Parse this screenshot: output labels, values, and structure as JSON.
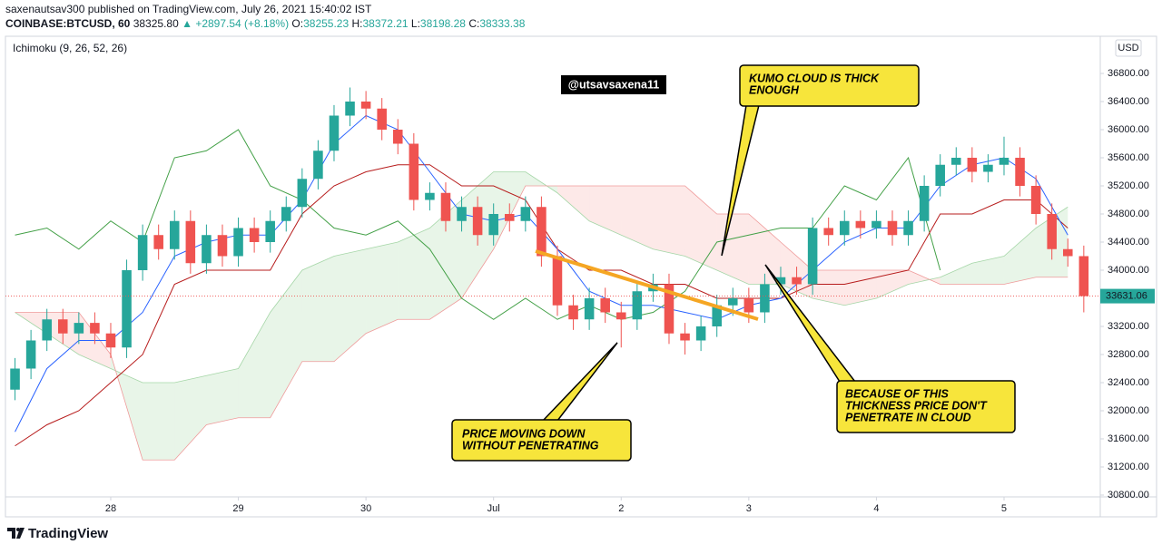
{
  "header": {
    "publisher_line": "saxenautsav300 published on TradingView.com, July 26, 2021 15:40:02 IST",
    "symbol": "COINBASE:BTCUSD, 60",
    "price": "38325.80",
    "change": "▲ +2897.54 (+8.18%)",
    "ohlc": [
      {
        "label": "O:",
        "value": "38255.23"
      },
      {
        "label": "H:",
        "value": "38372.21"
      },
      {
        "label": "L:",
        "value": "38198.28"
      },
      {
        "label": "C:",
        "value": "38333.38"
      }
    ]
  },
  "chart_data": {
    "type": "candlestick",
    "indicator_label": "Ichimoku (9, 26, 52, 26)",
    "currency": "USD",
    "watermark": "@utsavsaxena11",
    "up_color": "#26a69a",
    "down_color": "#ef5350",
    "x": [
      -18,
      -15,
      -12,
      -9,
      -6,
      -3,
      0,
      3,
      6,
      9,
      12,
      15,
      18,
      21,
      24,
      27,
      30,
      33,
      36,
      39,
      42,
      45,
      48,
      51,
      54,
      57,
      60,
      63,
      66,
      69,
      72,
      75,
      78,
      81,
      84,
      87,
      90,
      93,
      96,
      99,
      102,
      105,
      108,
      111,
      114,
      117,
      120,
      123,
      126,
      129,
      132,
      135,
      138,
      141,
      144,
      147,
      150,
      153,
      156,
      159,
      162,
      165,
      168,
      171,
      174,
      177,
      180,
      183
    ],
    "open": [
      32300,
      32600,
      33000,
      33300,
      33100,
      33250,
      33100,
      32900,
      34000,
      34500,
      34300,
      34700,
      34100,
      34500,
      34200,
      34600,
      34400,
      34700,
      34900,
      35300,
      35700,
      36200,
      36400,
      36300,
      36000,
      35800,
      35000,
      35100,
      34700,
      34900,
      34500,
      34800,
      34700,
      34900,
      34200,
      33500,
      33300,
      33600,
      33400,
      33300,
      33700,
      33800,
      33100,
      33000,
      33200,
      33500,
      33600,
      33400,
      33800,
      33900,
      33800,
      34600,
      34500,
      34700,
      34600,
      34700,
      34500,
      34700,
      35200,
      35500,
      35600,
      35400,
      35500,
      35600,
      35200,
      34800,
      34300,
      34200
    ],
    "high": [
      32750,
      33150,
      33450,
      33450,
      33400,
      33400,
      33250,
      34150,
      34650,
      34650,
      34850,
      34850,
      34650,
      34650,
      34750,
      34750,
      34850,
      35050,
      35450,
      35850,
      36350,
      36600,
      36550,
      36450,
      36150,
      35950,
      35250,
      35250,
      35050,
      35050,
      34950,
      34950,
      35050,
      35050,
      34350,
      33650,
      33750,
      33750,
      33550,
      33850,
      33950,
      33950,
      33250,
      33350,
      33650,
      33750,
      33750,
      33950,
      34050,
      34050,
      34750,
      34750,
      34850,
      34850,
      34850,
      34850,
      34850,
      35350,
      35650,
      35750,
      35750,
      35650,
      35900,
      35750,
      35350,
      34950,
      34450,
      34350
    ],
    "low": [
      32150,
      32450,
      32850,
      32950,
      32950,
      32950,
      32750,
      32750,
      33850,
      34150,
      34150,
      33950,
      33950,
      34050,
      34050,
      34250,
      34250,
      34550,
      34750,
      35150,
      35550,
      36050,
      36150,
      35850,
      35650,
      34850,
      34850,
      34550,
      34550,
      34350,
      34350,
      34550,
      34550,
      34050,
      33350,
      33150,
      33150,
      33250,
      32900,
      33150,
      33550,
      32950,
      32800,
      32850,
      33050,
      33350,
      33250,
      33250,
      33650,
      33650,
      33650,
      34350,
      34350,
      34450,
      34450,
      34350,
      34350,
      34550,
      35050,
      35350,
      35250,
      35250,
      35350,
      35050,
      34650,
      34150,
      34050,
      33400
    ],
    "close": [
      32600,
      33000,
      33300,
      33100,
      33250,
      33100,
      32900,
      34000,
      34500,
      34300,
      34700,
      34100,
      34500,
      34200,
      34600,
      34400,
      34700,
      34900,
      35300,
      35700,
      36200,
      36400,
      36300,
      36000,
      35800,
      35000,
      35100,
      34700,
      34900,
      34500,
      34800,
      34700,
      34900,
      34200,
      33500,
      33300,
      33600,
      33400,
      33300,
      33700,
      33800,
      33100,
      33000,
      33200,
      33500,
      33600,
      33400,
      33800,
      33900,
      33800,
      34600,
      34500,
      34700,
      34600,
      34700,
      34500,
      34700,
      35200,
      35500,
      35600,
      35400,
      35500,
      35600,
      35200,
      34800,
      34300,
      34200,
      33631.06
    ],
    "last_price": 33631.06,
    "ichimoku": {
      "x": [
        -18,
        -12,
        -6,
        0,
        6,
        12,
        18,
        24,
        30,
        36,
        42,
        48,
        54,
        60,
        66,
        72,
        78,
        84,
        90,
        96,
        102,
        108,
        114,
        120,
        126,
        132,
        138,
        144,
        150,
        156,
        162,
        168,
        174,
        180
      ],
      "tenkan": {
        "color": "#2962ff",
        "values": [
          31700,
          32600,
          33000,
          33000,
          33400,
          34200,
          34400,
          34500,
          34500,
          35000,
          35800,
          36200,
          36000,
          35400,
          34800,
          34700,
          34800,
          34300,
          33700,
          33500,
          33500,
          33400,
          33300,
          33500,
          33600,
          34000,
          34400,
          34600,
          34600,
          35200,
          35500,
          35600,
          35300,
          34500
        ]
      },
      "kijun": {
        "color": "#b71c1c",
        "values": [
          31500,
          31800,
          32000,
          32400,
          32800,
          33800,
          34000,
          34000,
          34000,
          34800,
          35200,
          35400,
          35500,
          35500,
          35200,
          35200,
          35000,
          34300,
          34000,
          34000,
          33800,
          33800,
          33600,
          33600,
          33600,
          33800,
          33800,
          33900,
          34000,
          34800,
          34800,
          35000,
          35000,
          34600
        ]
      },
      "chikou": {
        "color": "#43a047",
        "values": [
          34500,
          34600,
          34300,
          34700,
          34400,
          35600,
          35700,
          36000,
          35200,
          35000,
          34600,
          34500,
          34700,
          34300,
          33600,
          33300,
          33600,
          33300,
          33500,
          33300,
          33400,
          33700,
          34400,
          34500,
          34600,
          34600,
          35200,
          35000,
          35600,
          34000,
          null,
          null,
          null,
          null
        ]
      },
      "span_a": {
        "color": "#a5d6a7",
        "values": [
          33400,
          33100,
          32800,
          32600,
          32400,
          32400,
          32500,
          32600,
          33400,
          34000,
          34200,
          34300,
          34400,
          34600,
          35000,
          35400,
          35400,
          35100,
          34700,
          34500,
          34300,
          34200,
          34000,
          33800,
          33800,
          33600,
          33500,
          33600,
          33800,
          33900,
          34100,
          34200,
          34600,
          34900
        ]
      },
      "span_b": {
        "color": "#ef9a9a",
        "values": [
          33400,
          33400,
          33400,
          32800,
          31300,
          31300,
          31800,
          31900,
          31900,
          32700,
          32700,
          33100,
          33300,
          33300,
          33600,
          34300,
          35200,
          35200,
          35200,
          35200,
          35200,
          35200,
          34800,
          34800,
          34400,
          34000,
          34000,
          34000,
          34000,
          33800,
          33800,
          33800,
          33900,
          33900
        ]
      },
      "cloud_up_color": "rgba(76,175,80,0.13)",
      "cloud_down_color": "rgba(239,83,80,0.13)"
    },
    "xlim": [
      -19.8,
      186.1
    ],
    "ylim": [
      30774,
      37329
    ],
    "xticks": [
      {
        "value": 0,
        "label": "28"
      },
      {
        "value": 24,
        "label": "29"
      },
      {
        "value": 48,
        "label": "30"
      },
      {
        "value": 72,
        "label": "Jul"
      },
      {
        "value": 96,
        "label": "2"
      },
      {
        "value": 120,
        "label": "3"
      },
      {
        "value": 144,
        "label": "4"
      },
      {
        "value": 168,
        "label": "5"
      }
    ],
    "yticks": [
      {
        "value": 30800,
        "label": "30800.00"
      },
      {
        "value": 31200,
        "label": "31200.00"
      },
      {
        "value": 31600,
        "label": "31600.00"
      },
      {
        "value": 32000,
        "label": "32000.00"
      },
      {
        "value": 32400,
        "label": "32400.00"
      },
      {
        "value": 32800,
        "label": "32800.00"
      },
      {
        "value": 33200,
        "label": "33200.00"
      },
      {
        "value": 33600,
        "label": "33600.00"
      },
      {
        "value": 34000,
        "label": "34000.00"
      },
      {
        "value": 34400,
        "label": "34400.00"
      },
      {
        "value": 34800,
        "label": "34800.00"
      },
      {
        "value": 35200,
        "label": "35200.00"
      },
      {
        "value": 35600,
        "label": "35600.00"
      },
      {
        "value": 36000,
        "label": "36000.00"
      },
      {
        "value": 36400,
        "label": "36400.00"
      },
      {
        "value": 36800,
        "label": "36800.00"
      }
    ]
  },
  "annotations": [
    {
      "lines": [
        "KUMO CLOUD IS THICK",
        "ENOUGH"
      ]
    },
    {
      "lines": [
        "BECAUSE OF THIS",
        "THICKNESS PRICE DON'T",
        "PENETRATE IN CLOUD"
      ]
    },
    {
      "lines": [
        "PRICE MOVING DOWN",
        "WITHOUT PENETRATING"
      ]
    }
  ],
  "footer": {
    "brand": "TradingView"
  }
}
